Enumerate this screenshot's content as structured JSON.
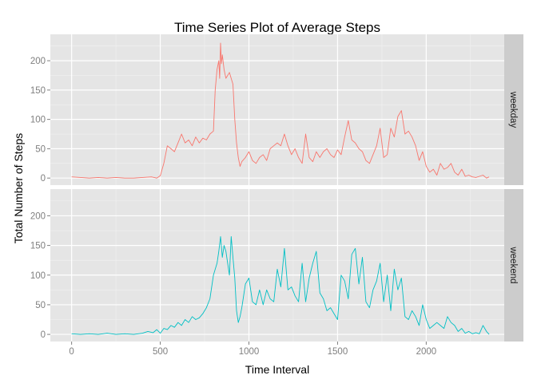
{
  "chart_data": {
    "type": "line",
    "title": "Time Series Plot of Average Steps",
    "xlabel": "Time Interval",
    "ylabel": "Total Number of Steps",
    "xlim": [
      -120,
      2440
    ],
    "ylim": [
      -12,
      245
    ],
    "x_ticks": [
      0,
      500,
      1000,
      1500,
      2000
    ],
    "y_ticks": [
      0,
      50,
      100,
      150,
      200
    ],
    "grid": true,
    "facets": [
      {
        "label": "weekday",
        "color": "#F8766D",
        "x": [
          0,
          50,
          100,
          150,
          200,
          250,
          300,
          350,
          400,
          450,
          480,
          500,
          520,
          540,
          560,
          580,
          600,
          620,
          640,
          660,
          680,
          700,
          720,
          740,
          760,
          780,
          800,
          810,
          820,
          830,
          835,
          840,
          845,
          850,
          860,
          870,
          880,
          890,
          900,
          910,
          920,
          930,
          940,
          950,
          960,
          980,
          1000,
          1020,
          1040,
          1060,
          1080,
          1100,
          1120,
          1140,
          1160,
          1180,
          1200,
          1220,
          1240,
          1260,
          1280,
          1300,
          1320,
          1340,
          1360,
          1380,
          1400,
          1420,
          1440,
          1460,
          1480,
          1500,
          1520,
          1540,
          1560,
          1580,
          1600,
          1620,
          1640,
          1660,
          1680,
          1700,
          1720,
          1740,
          1760,
          1780,
          1800,
          1820,
          1840,
          1860,
          1880,
          1900,
          1920,
          1940,
          1960,
          1980,
          2000,
          2020,
          2040,
          2060,
          2080,
          2100,
          2120,
          2140,
          2160,
          2180,
          2200,
          2220,
          2240,
          2260,
          2280,
          2300,
          2320,
          2340,
          2355
        ],
        "values": [
          2,
          1,
          0,
          1,
          0,
          1,
          0,
          0,
          1,
          2,
          0,
          4,
          25,
          55,
          50,
          45,
          60,
          75,
          60,
          65,
          55,
          70,
          60,
          68,
          65,
          75,
          80,
          150,
          185,
          200,
          170,
          230,
          195,
          210,
          185,
          170,
          175,
          180,
          170,
          160,
          100,
          60,
          35,
          20,
          28,
          35,
          45,
          30,
          25,
          35,
          40,
          30,
          50,
          55,
          60,
          55,
          75,
          55,
          40,
          50,
          35,
          25,
          75,
          35,
          28,
          45,
          35,
          45,
          50,
          40,
          35,
          48,
          40,
          70,
          98,
          65,
          60,
          50,
          45,
          30,
          25,
          40,
          55,
          85,
          35,
          40,
          85,
          70,
          105,
          115,
          75,
          80,
          70,
          55,
          30,
          45,
          20,
          10,
          15,
          5,
          25,
          15,
          18,
          25,
          10,
          5,
          15,
          3,
          5,
          2,
          1,
          3,
          5,
          0,
          2
        ],
        "y_ticks_labels": [
          "0",
          "50",
          "100",
          "150",
          "200"
        ]
      },
      {
        "label": "weekend",
        "color": "#00BFC4",
        "x": [
          0,
          50,
          100,
          150,
          200,
          250,
          300,
          350,
          400,
          430,
          460,
          480,
          500,
          520,
          540,
          560,
          580,
          600,
          620,
          640,
          660,
          680,
          700,
          720,
          740,
          760,
          780,
          800,
          820,
          830,
          840,
          850,
          860,
          870,
          880,
          890,
          900,
          910,
          920,
          930,
          940,
          950,
          960,
          980,
          1000,
          1020,
          1040,
          1060,
          1080,
          1100,
          1120,
          1140,
          1160,
          1180,
          1200,
          1220,
          1240,
          1260,
          1280,
          1300,
          1320,
          1340,
          1360,
          1380,
          1400,
          1420,
          1440,
          1460,
          1480,
          1500,
          1520,
          1540,
          1560,
          1580,
          1600,
          1620,
          1640,
          1660,
          1680,
          1700,
          1720,
          1740,
          1760,
          1780,
          1800,
          1820,
          1840,
          1860,
          1880,
          1900,
          1920,
          1940,
          1960,
          1980,
          2000,
          2020,
          2040,
          2060,
          2080,
          2100,
          2120,
          2140,
          2160,
          2180,
          2200,
          2220,
          2240,
          2260,
          2280,
          2300,
          2320,
          2340,
          2355
        ],
        "values": [
          1,
          0,
          1,
          0,
          2,
          0,
          1,
          0,
          2,
          5,
          3,
          8,
          2,
          10,
          8,
          15,
          12,
          20,
          15,
          25,
          20,
          30,
          25,
          28,
          35,
          45,
          60,
          100,
          120,
          140,
          165,
          130,
          150,
          140,
          120,
          100,
          165,
          130,
          95,
          40,
          20,
          30,
          45,
          85,
          95,
          55,
          50,
          75,
          50,
          75,
          60,
          55,
          110,
          80,
          145,
          75,
          80,
          65,
          55,
          120,
          55,
          95,
          120,
          140,
          70,
          60,
          40,
          45,
          35,
          25,
          100,
          90,
          60,
          135,
          145,
          85,
          130,
          55,
          45,
          75,
          90,
          120,
          55,
          100,
          40,
          110,
          75,
          95,
          30,
          25,
          40,
          30,
          15,
          50,
          25,
          10,
          15,
          20,
          15,
          10,
          30,
          20,
          15,
          5,
          10,
          2,
          5,
          1,
          3,
          1,
          15,
          5,
          0
        ],
        "y_ticks_labels": [
          "0",
          "50",
          "100",
          "150",
          "200"
        ]
      }
    ]
  }
}
